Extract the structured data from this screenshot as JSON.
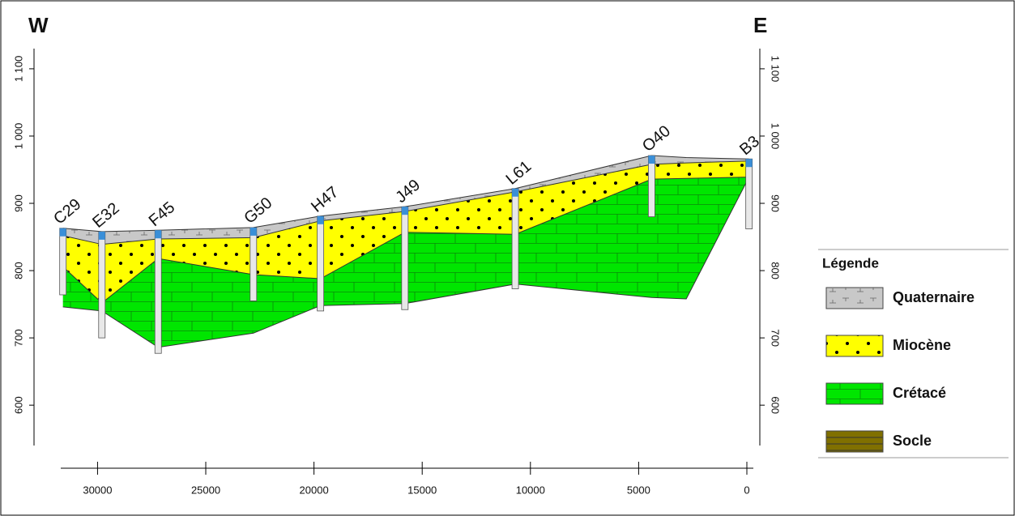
{
  "chart_data": {
    "type": "cross-section",
    "west_label": "W",
    "east_label": "E",
    "xlim": [
      31700,
      -300
    ],
    "xticks": [
      30000,
      25000,
      20000,
      15000,
      10000,
      5000,
      0
    ],
    "ylim": [
      540,
      1130
    ],
    "yticks": [
      {
        "value": 600,
        "label": "600"
      },
      {
        "value": 700,
        "label": "700"
      },
      {
        "value": 800,
        "label": "800"
      },
      {
        "value": 900,
        "label": "900"
      },
      {
        "value": 1000,
        "label": "1 000"
      },
      {
        "value": 1100,
        "label": "1 100"
      }
    ],
    "x": [
      31600,
      29800,
      27200,
      22800,
      19700,
      15800,
      10700,
      4400,
      2800,
      -100
    ],
    "series": [
      {
        "name": "Quaternaire",
        "color": "#c8c8c8",
        "values": [
          863,
          858,
          860,
          864,
          881,
          895,
          922,
          971,
          968,
          966
        ]
      },
      {
        "name": "Miocène",
        "color": "#ffff00",
        "values": [
          852,
          839,
          847,
          849,
          874,
          888,
          917,
          958,
          960,
          963
        ]
      },
      {
        "name": "Crétacé",
        "color": "#00e600",
        "values": [
          806,
          752,
          818,
          794,
          788,
          857,
          854,
          936,
          937,
          939
        ]
      },
      {
        "name": "Socle",
        "color": "#807000",
        "values": [
          746,
          740,
          686,
          707,
          748,
          751,
          780,
          760,
          758,
          939
        ]
      }
    ],
    "wells": [
      {
        "name": "C29",
        "x": 31600,
        "top": 863,
        "bottom": 764
      },
      {
        "name": "E32",
        "x": 29800,
        "top": 858,
        "bottom": 700
      },
      {
        "name": "F45",
        "x": 27200,
        "top": 860,
        "bottom": 677
      },
      {
        "name": "G50",
        "x": 22800,
        "top": 864,
        "bottom": 755
      },
      {
        "name": "H47",
        "x": 19700,
        "top": 881,
        "bottom": 740
      },
      {
        "name": "J49",
        "x": 15800,
        "top": 895,
        "bottom": 742
      },
      {
        "name": "L61",
        "x": 10700,
        "top": 922,
        "bottom": 773
      },
      {
        "name": "O40",
        "x": 4400,
        "top": 971,
        "bottom": 880
      },
      {
        "name": "B3",
        "x": -100,
        "top": 966,
        "bottom": 862
      }
    ],
    "legend_title": "Légende"
  }
}
